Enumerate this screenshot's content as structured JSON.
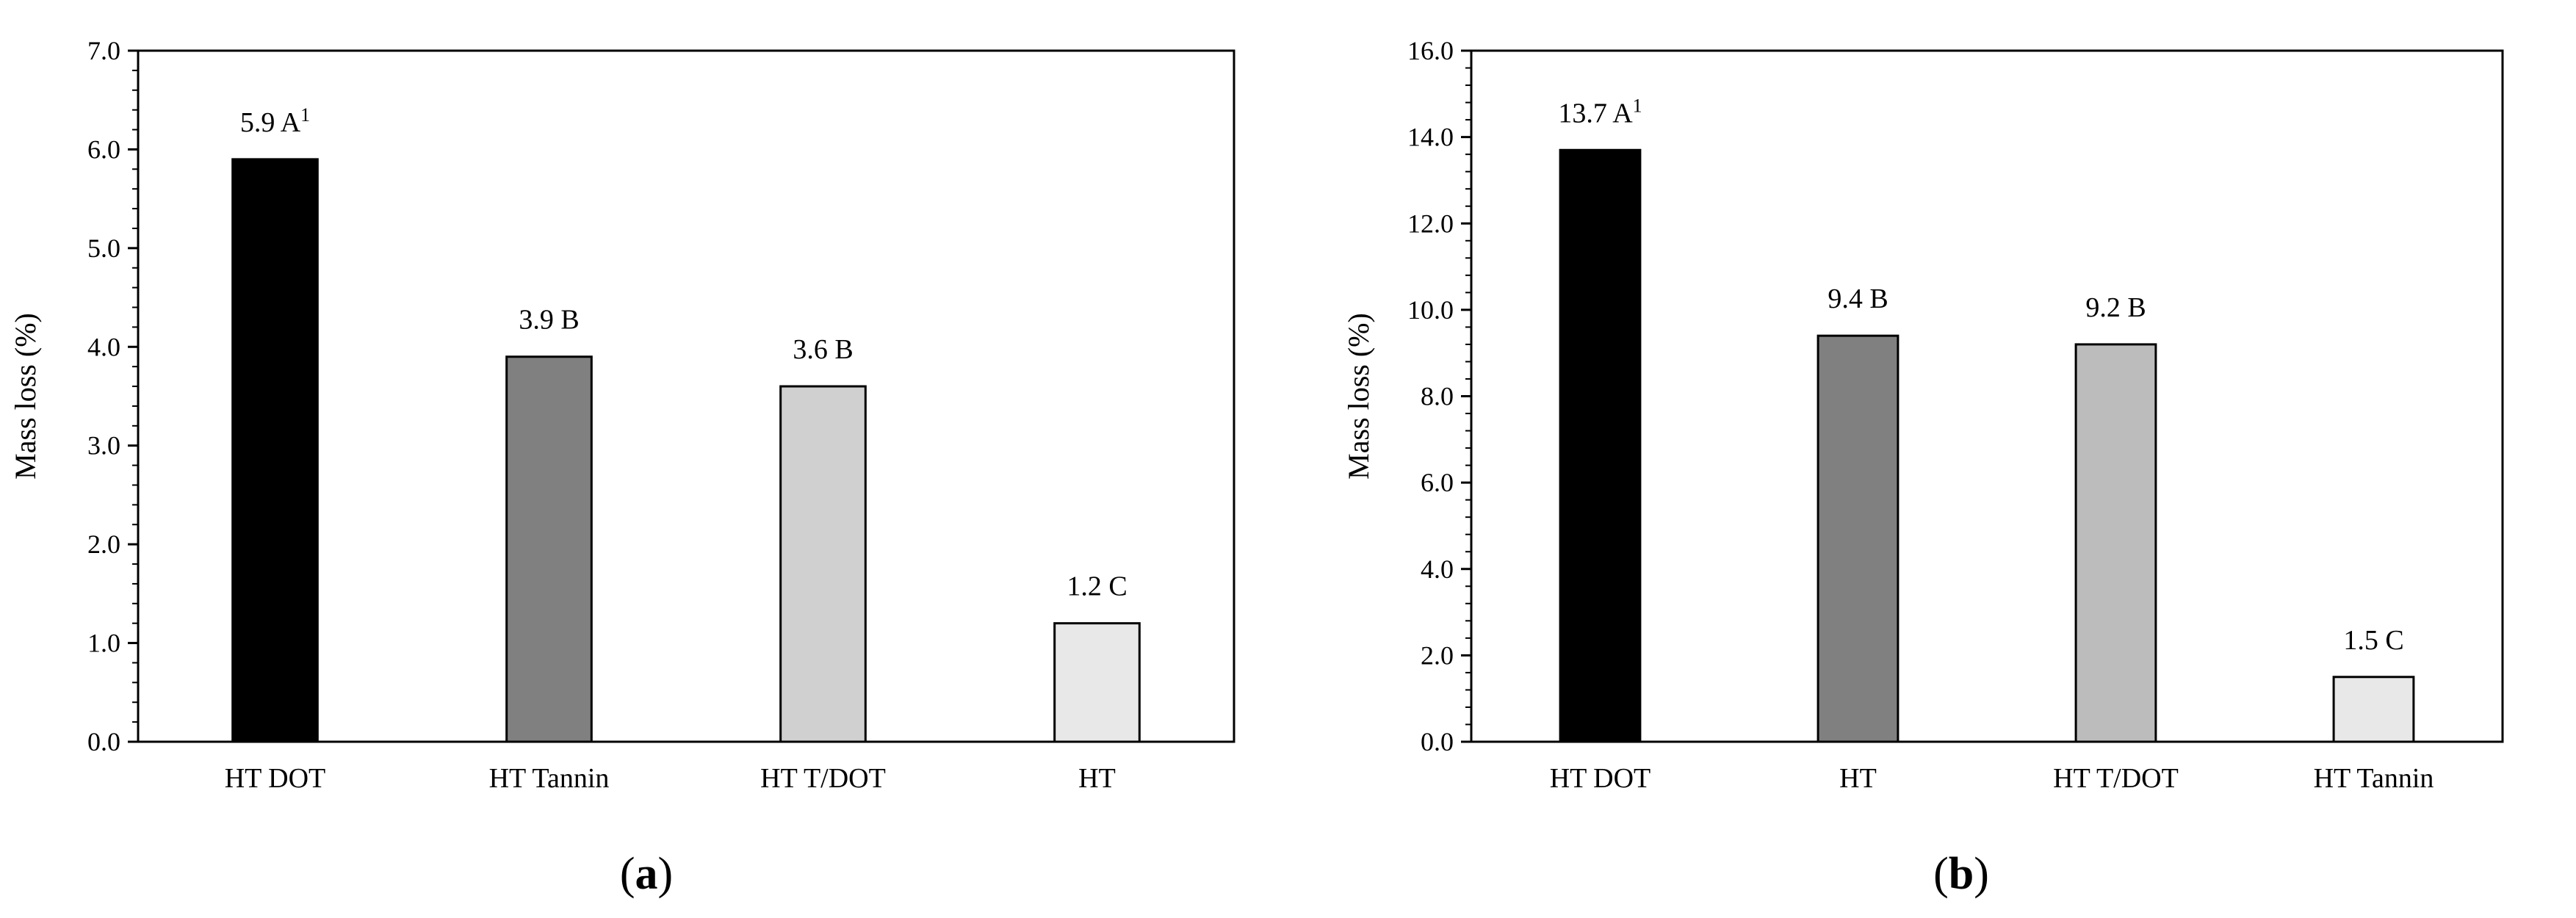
{
  "chart_data": [
    {
      "type": "bar",
      "panel_label": "a",
      "categories": [
        "HT DOT",
        "HT Tannin",
        "HT T/DOT",
        "HT"
      ],
      "values": [
        5.9,
        3.9,
        3.6,
        1.2
      ],
      "data_labels": [
        "5.9 A",
        "3.9 B",
        "3.6 B",
        "1.2 C"
      ],
      "data_label_superscripts": [
        "1",
        "",
        "",
        ""
      ],
      "bar_colors": [
        "#000000",
        "#808080",
        "#d0d0d0",
        "#e8e8e8"
      ],
      "ylabel": "Mass loss (%)",
      "xlabel": "",
      "ylim": [
        0,
        7.0
      ],
      "ytick_step": 1.0,
      "yticks": [
        "0.0",
        "1.0",
        "2.0",
        "3.0",
        "4.0",
        "5.0",
        "6.0",
        "7.0"
      ],
      "grid": false
    },
    {
      "type": "bar",
      "panel_label": "b",
      "categories": [
        "HT DOT",
        "HT",
        "HT T/DOT",
        "HT Tannin"
      ],
      "values": [
        13.7,
        9.4,
        9.2,
        1.5
      ],
      "data_labels": [
        "13.7 A",
        "9.4 B",
        "9.2 B",
        "1.5 C"
      ],
      "data_label_superscripts": [
        "1",
        "",
        "",
        ""
      ],
      "bar_colors": [
        "#000000",
        "#808080",
        "#bcbcbc",
        "#e8e8e8"
      ],
      "ylabel": "Mass loss (%)",
      "xlabel": "",
      "ylim": [
        0,
        16.0
      ],
      "ytick_step": 2.0,
      "yticks": [
        "0.0",
        "2.0",
        "4.0",
        "6.0",
        "8.0",
        "10.0",
        "12.0",
        "14.0",
        "16.0"
      ],
      "grid": false
    }
  ]
}
